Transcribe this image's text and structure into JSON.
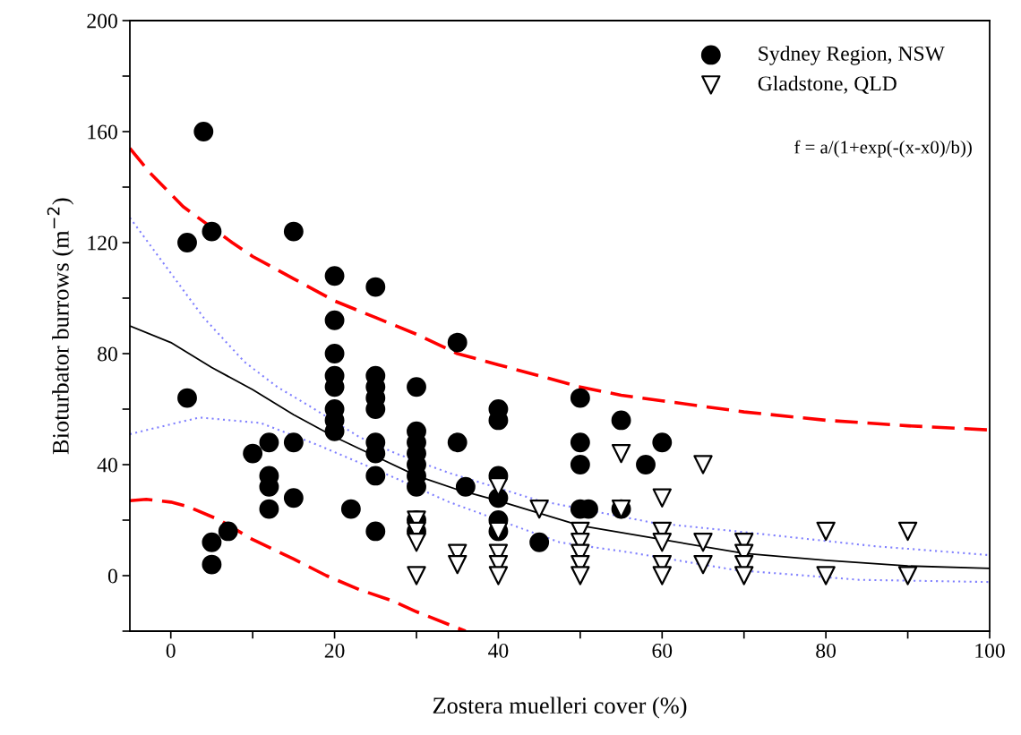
{
  "chart_data": {
    "type": "scatter",
    "xlabel": "Zostera muelleri cover (%)",
    "ylabel": "Bioturbator burrows (m$^{−2}$)",
    "annotations": [
      "f = a/(1+exp(-(x-x0)/b))"
    ],
    "xlim": [
      -5,
      100
    ],
    "ylim": [
      -20,
      200
    ],
    "xticks": [
      0,
      {
        "value": 10,
        "label": null
      },
      20,
      {
        "value": 30,
        "label": null
      },
      40,
      {
        "value": 50,
        "label": null
      },
      60,
      {
        "value": 70,
        "label": null
      },
      80,
      {
        "value": 90,
        "label": null
      },
      100
    ],
    "yticks": [
      {
        "value": -20,
        "label": null
      },
      0,
      {
        "value": 20,
        "label": null
      },
      40,
      {
        "value": 60,
        "label": null
      },
      80,
      {
        "value": 100,
        "label": null
      },
      120,
      {
        "value": 140,
        "label": null
      },
      160,
      {
        "value": 180,
        "label": null
      },
      200
    ],
    "grid": false,
    "legend": "top right",
    "series": [
      {
        "name": "Sydney Region, NSW",
        "marker": "circle",
        "color": "#000000",
        "x": [
          2,
          2,
          4,
          5,
          5,
          5,
          7,
          10,
          12,
          12,
          12,
          12,
          15,
          15,
          15,
          20,
          20,
          20,
          20,
          20,
          20,
          20,
          20,
          22,
          25,
          25,
          25,
          25,
          25,
          25,
          25,
          25,
          25,
          30,
          30,
          30,
          30,
          30,
          30,
          30,
          30,
          30,
          35,
          35,
          36,
          40,
          40,
          40,
          40,
          40,
          40,
          45,
          50,
          50,
          50,
          50,
          51,
          55,
          55,
          58,
          60
        ],
        "values": [
          120,
          64,
          160,
          124,
          12,
          4,
          16,
          44,
          48,
          36,
          32,
          24,
          124,
          48,
          28,
          108,
          92,
          80,
          72,
          68,
          60,
          56,
          52,
          24,
          104,
          72,
          68,
          64,
          60,
          48,
          44,
          36,
          16,
          68,
          52,
          48,
          44,
          40,
          36,
          32,
          20,
          16,
          84,
          48,
          32,
          60,
          56,
          36,
          28,
          20,
          16,
          12,
          64,
          48,
          40,
          24,
          24,
          56,
          24,
          40,
          48
        ]
      },
      {
        "name": "Gladstone, QLD",
        "marker": "triangle",
        "color": "#000000",
        "x": [
          30,
          30,
          30,
          30,
          35,
          35,
          40,
          40,
          40,
          40,
          40,
          45,
          50,
          50,
          50,
          50,
          50,
          55,
          55,
          60,
          60,
          60,
          60,
          60,
          65,
          65,
          65,
          70,
          70,
          70,
          70,
          80,
          80,
          90,
          90
        ],
        "values": [
          20,
          16,
          12,
          0,
          8,
          4,
          32,
          16,
          8,
          4,
          0,
          24,
          16,
          12,
          8,
          4,
          0,
          44,
          24,
          28,
          16,
          12,
          4,
          0,
          40,
          12,
          4,
          12,
          8,
          4,
          0,
          16,
          0,
          16,
          0
        ]
      },
      {
        "type": "line",
        "line_style": "solid",
        "color": "#000000",
        "x": [
          -5,
          0,
          5,
          10,
          15,
          20,
          25,
          30,
          35,
          40,
          50,
          60,
          70,
          80,
          90,
          100
        ],
        "values": [
          90,
          84,
          75,
          67,
          58,
          50,
          43,
          36,
          31,
          27,
          18,
          13,
          8,
          5.5,
          3.5,
          2.6
        ]
      },
      {
        "type": "line",
        "line_style": "dashed",
        "color": "#ff0000",
        "x": [
          -5,
          -2.5,
          1.5,
          7.5,
          10,
          15,
          20,
          25,
          30,
          35,
          40,
          45,
          50,
          55,
          60,
          70,
          80,
          90,
          100
        ],
        "values": [
          154,
          145,
          133,
          120,
          115,
          107,
          99,
          93,
          87,
          80,
          76,
          72,
          68,
          65,
          63,
          59,
          56,
          54,
          52.5
        ]
      },
      {
        "type": "line",
        "line_style": "dashed",
        "color": "#ff0000",
        "x": [
          -5,
          -3,
          0,
          2,
          6,
          10,
          15,
          19,
          23,
          27,
          30,
          36
        ],
        "values": [
          27,
          27.5,
          26.5,
          25,
          20,
          13,
          6,
          0,
          -5,
          -9,
          -13,
          -20
        ]
      },
      {
        "type": "line",
        "line_style": "dotted",
        "color": "#8080ff",
        "x": [
          -5,
          0,
          4,
          9,
          13,
          17,
          23,
          27.5,
          34,
          45,
          59,
          69,
          86,
          100
        ],
        "values": [
          129,
          109,
          93,
          77,
          68,
          61,
          50,
          44,
          37,
          27,
          19,
          16,
          10.6,
          7.4
        ]
      },
      {
        "type": "line",
        "line_style": "dotted",
        "color": "#8080ff",
        "x": [
          -5,
          3.5,
          11,
          18,
          26,
          34,
          47.5,
          56,
          69,
          84,
          100
        ],
        "values": [
          51,
          57,
          55,
          47,
          37,
          26.5,
          12,
          8.4,
          2,
          -1.5,
          -2.3
        ]
      }
    ]
  }
}
